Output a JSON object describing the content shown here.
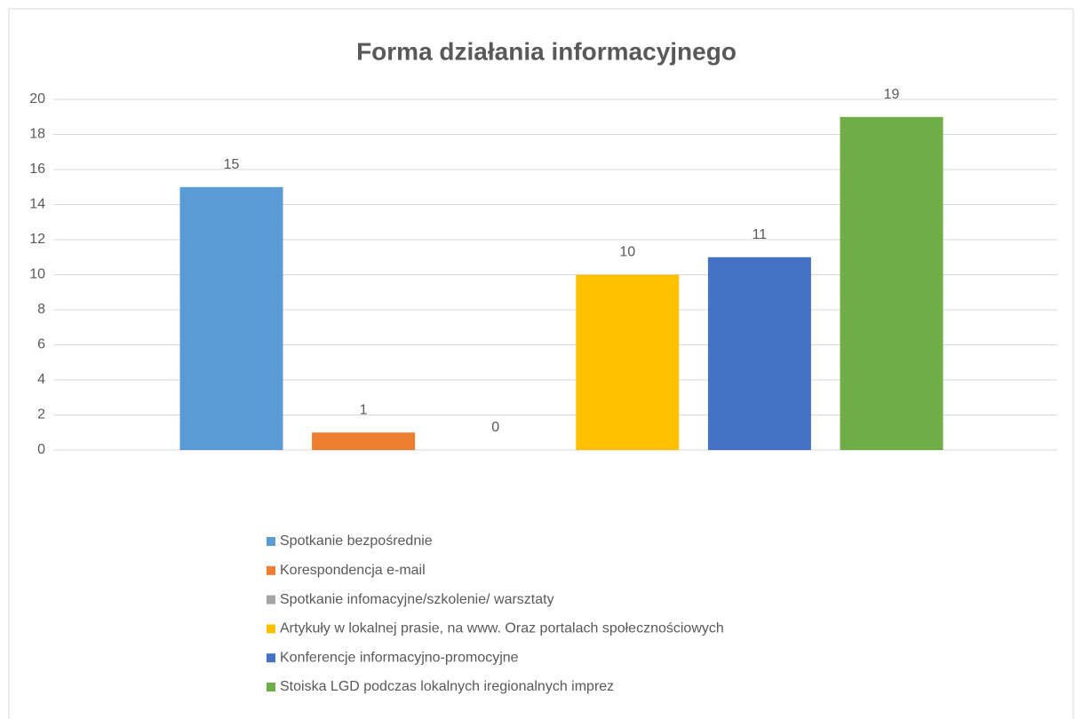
{
  "chart_data": {
    "type": "bar",
    "title": "Forma działania informacyjnego",
    "categories": [
      null
    ],
    "series": [
      {
        "name": "Spotkanie bezpośrednie",
        "color": "#5b9bd5",
        "values": [
          15
        ]
      },
      {
        "name": "Korespondencja e-mail",
        "color": "#ed7d31",
        "values": [
          1
        ]
      },
      {
        "name": "Spotkanie infomacyjne/szkolenie/  warsztaty",
        "color": "#a5a5a5",
        "values": [
          0
        ]
      },
      {
        "name": "Artykuły w lokalnej prasie, na www. Oraz portalach społecznościowych",
        "color": "#ffc000",
        "values": [
          10
        ]
      },
      {
        "name": "Konferencje informacyjno-promocyjne",
        "color": "#4472c4",
        "values": [
          11
        ]
      },
      {
        "name": "Stoiska LGD podczas lokalnych iregionalnych imprez",
        "color": "#70ad47",
        "values": [
          19
        ]
      }
    ],
    "ylim": [
      0,
      20
    ],
    "yticks": [
      0,
      2,
      4,
      6,
      8,
      10,
      12,
      14,
      16,
      18,
      20
    ],
    "grid": true,
    "legend": "bottom"
  }
}
